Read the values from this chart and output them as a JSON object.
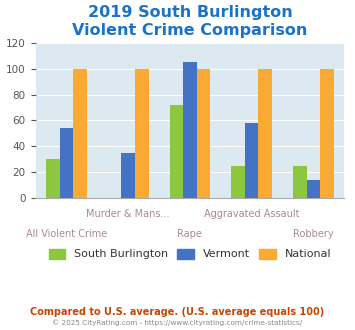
{
  "title": "2019 South Burlington\nViolent Crime Comparison",
  "categories": [
    "All Violent Crime",
    "Murder & Mans...",
    "Rape",
    "Aggravated Assault",
    "Robbery"
  ],
  "label_row": [
    1,
    0,
    1,
    0,
    1
  ],
  "series": {
    "South Burlington": [
      30,
      0,
      72,
      25,
      25
    ],
    "Vermont": [
      54,
      35,
      105,
      58,
      14
    ],
    "National": [
      100,
      100,
      100,
      100,
      100
    ]
  },
  "colors": {
    "South Burlington": "#8dc63f",
    "Vermont": "#4472c4",
    "National": "#faa932"
  },
  "ylim": [
    0,
    120
  ],
  "yticks": [
    0,
    20,
    40,
    60,
    80,
    100,
    120
  ],
  "title_color": "#1a73c8",
  "title_fontsize": 11.5,
  "background_color": "#dce9f0",
  "footer_text": "Compared to U.S. average. (U.S. average equals 100)",
  "footer_color": "#cc4400",
  "copyright_text": "© 2025 CityRating.com - https://www.cityrating.com/crime-statistics/",
  "copyright_color": "#888888",
  "xlabel_fontsize": 7.0,
  "xlabel_color": "#aa8899",
  "legend_fontsize": 8.0,
  "bar_width": 0.22
}
